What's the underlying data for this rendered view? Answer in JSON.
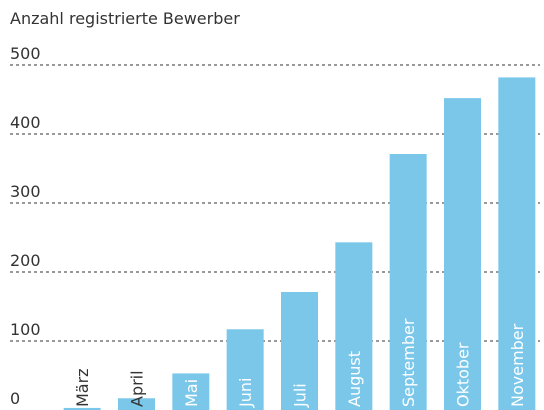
{
  "chart_data": {
    "type": "bar",
    "title": "Anzahl registrierte Bewerber",
    "categories": [
      "März",
      "April",
      "Mai",
      "Juni",
      "Juli",
      "August",
      "September",
      "Oktober",
      "November"
    ],
    "values": [
      3,
      17,
      53,
      117,
      171,
      243,
      371,
      452,
      482
    ],
    "color": "#7ac7ea",
    "ylim": [
      0,
      500
    ],
    "yticks": [
      0,
      100,
      200,
      300,
      400,
      500
    ],
    "grid": true
  }
}
